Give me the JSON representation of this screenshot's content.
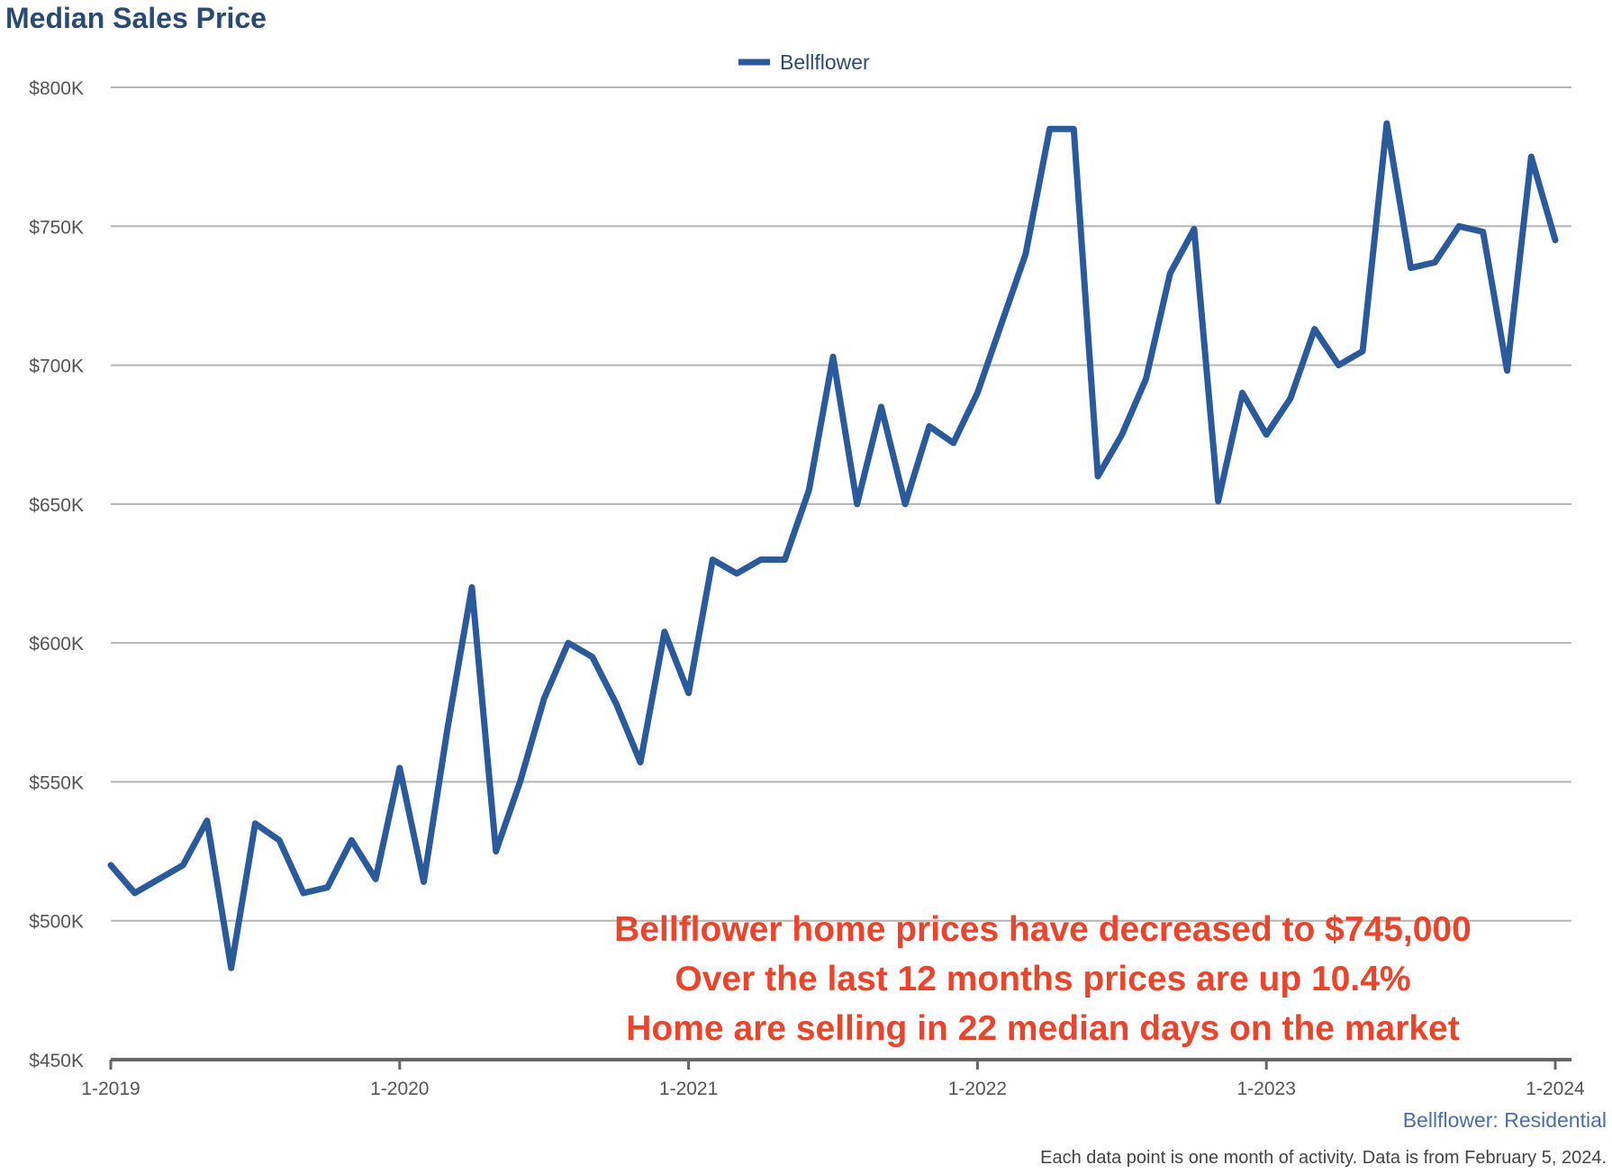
{
  "chart_data": {
    "type": "line",
    "title": "Median Sales Price",
    "legend": [
      "Bellflower"
    ],
    "subtitle": "Bellflower: Residential",
    "footnote": "Each data point is one month of activity. Data is from February 5, 2024.",
    "annotation": [
      "Bellflower home prices have decreased to $745,000",
      "Over the last 12 months prices are up 10.4%",
      "Home are selling in 22 median days on the market"
    ],
    "ylim": [
      450000,
      800000
    ],
    "y_ticks": [
      {
        "value": 450000,
        "label": "$450K"
      },
      {
        "value": 500000,
        "label": "$500K"
      },
      {
        "value": 550000,
        "label": "$550K"
      },
      {
        "value": 600000,
        "label": "$600K"
      },
      {
        "value": 650000,
        "label": "$650K"
      },
      {
        "value": 700000,
        "label": "$700K"
      },
      {
        "value": 750000,
        "label": "$750K"
      },
      {
        "value": 800000,
        "label": "$800K"
      }
    ],
    "x_ticks": [
      {
        "index": 0,
        "label": "1-2019"
      },
      {
        "index": 12,
        "label": "1-2020"
      },
      {
        "index": 24,
        "label": "1-2021"
      },
      {
        "index": 36,
        "label": "1-2022"
      },
      {
        "index": 48,
        "label": "1-2023"
      },
      {
        "index": 60,
        "label": "1-2024"
      }
    ],
    "grid": true,
    "colors": {
      "series": "#2a5a9b",
      "grid": "#b5b5b5",
      "axis": "#666666",
      "annotation": "#e8452c"
    },
    "series": [
      {
        "name": "Bellflower",
        "start": "1-2019",
        "values": [
          520000,
          510000,
          515000,
          520000,
          536000,
          483000,
          535000,
          529000,
          510000,
          512000,
          529000,
          515000,
          555000,
          514000,
          570000,
          620000,
          525000,
          550000,
          580000,
          600000,
          595000,
          578000,
          557000,
          604000,
          582000,
          630000,
          625000,
          630000,
          630000,
          655000,
          703000,
          650000,
          685000,
          650000,
          678000,
          672000,
          690000,
          715000,
          740000,
          785000,
          785000,
          660000,
          675000,
          695000,
          733000,
          749000,
          651000,
          690000,
          675000,
          688000,
          713000,
          700000,
          705000,
          787000,
          735000,
          737000,
          750000,
          748000,
          698000,
          775000,
          745000
        ]
      }
    ]
  }
}
